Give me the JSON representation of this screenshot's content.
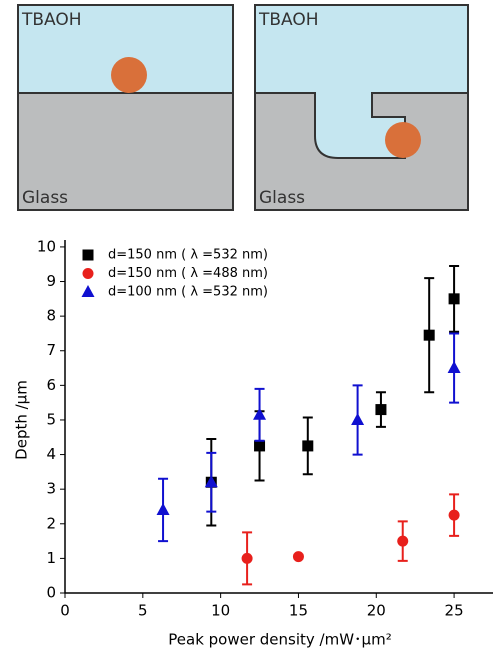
{
  "schematic": {
    "panels": [
      {
        "top_label": "TBAOH",
        "bottom_label": "Glass"
      },
      {
        "top_label": "TBAOH",
        "bottom_label": "Glass"
      }
    ]
  },
  "chart_data": {
    "type": "scatter",
    "x_label": "Peak power density /mW･μm²",
    "y_label": "Depth /μm",
    "xlim": [
      0,
      27.5
    ],
    "ylim": [
      0,
      10.2
    ],
    "xticks": [
      0,
      5,
      10,
      15,
      20,
      25
    ],
    "yticks": [
      0,
      1,
      2,
      3,
      4,
      5,
      6,
      7,
      8,
      9,
      10
    ],
    "legend": "top-left",
    "series": [
      {
        "name": "d=150 nm ( λ =532 nm)",
        "color": "#000000",
        "marker": "square",
        "x": [
          9.4,
          12.5,
          15.6,
          20.3,
          23.4,
          25
        ],
        "values": [
          3.2,
          4.25,
          4.25,
          5.3,
          7.45,
          8.5
        ],
        "errors": [
          1.25,
          1.0,
          0.82,
          0.5,
          1.65,
          0.95
        ]
      },
      {
        "name": "d=150 nm ( λ =488 nm)",
        "color": "#e8201c",
        "marker": "circle",
        "x": [
          11.7,
          15,
          21.7,
          25
        ],
        "values": [
          1.0,
          1.05,
          1.5,
          2.25
        ],
        "errors": [
          0.75,
          0.05,
          0.57,
          0.6
        ]
      },
      {
        "name": "d=100 nm ( λ =532 nm)",
        "color": "#1010d0",
        "marker": "triangle",
        "x": [
          6.3,
          9.4,
          12.5,
          18.8,
          25
        ],
        "values": [
          2.4,
          3.2,
          5.15,
          5.0,
          6.5
        ],
        "errors": [
          0.9,
          0.85,
          0.75,
          1.0,
          1.0
        ]
      }
    ]
  }
}
